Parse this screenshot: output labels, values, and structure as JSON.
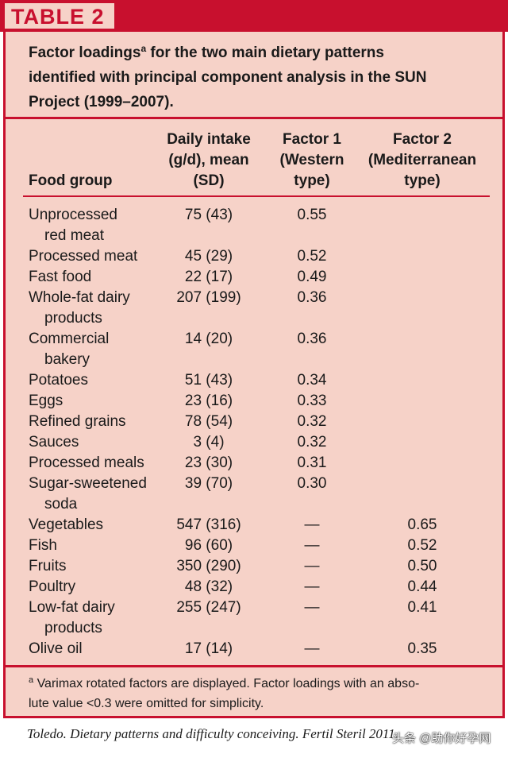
{
  "table": {
    "label": "TABLE 2",
    "caption_line1_a": "Factor loadings",
    "caption_sup": "a",
    "caption_line1_b": " for the two main dietary patterns",
    "caption_line2": "identified with principal component analysis in the SUN",
    "caption_line3": "Project (1999–2007).",
    "columns": [
      {
        "lines": [
          "",
          "",
          "Food group"
        ]
      },
      {
        "lines": [
          "Daily intake",
          "(g/d), mean",
          "(SD)"
        ]
      },
      {
        "lines": [
          "Factor 1",
          "(Western",
          "type)"
        ]
      },
      {
        "lines": [
          "Factor 2",
          "(Mediterranean",
          "type)"
        ]
      }
    ],
    "rows": [
      {
        "food": [
          "Unprocessed",
          "red meat"
        ],
        "intake": "75 (43)",
        "f1": "0.55",
        "f2": ""
      },
      {
        "food": [
          "Processed meat"
        ],
        "intake": "45 (29)",
        "f1": "0.52",
        "f2": ""
      },
      {
        "food": [
          "Fast food"
        ],
        "intake": "22 (17)",
        "f1": "0.49",
        "f2": ""
      },
      {
        "food": [
          "Whole-fat dairy",
          "products"
        ],
        "intake": "207 (199)",
        "f1": "0.36",
        "f2": ""
      },
      {
        "food": [
          "Commercial",
          "bakery"
        ],
        "intake": "14 (20)",
        "f1": "0.36",
        "f2": ""
      },
      {
        "food": [
          "Potatoes"
        ],
        "intake": "51 (43)",
        "f1": "0.34",
        "f2": ""
      },
      {
        "food": [
          "Eggs"
        ],
        "intake": "23 (16)",
        "f1": "0.33",
        "f2": ""
      },
      {
        "food": [
          "Refined grains"
        ],
        "intake": "78 (54)",
        "f1": "0.32",
        "f2": ""
      },
      {
        "food": [
          "Sauces"
        ],
        "intake": "3 (4)",
        "f1": "0.32",
        "f2": ""
      },
      {
        "food": [
          "Processed meals"
        ],
        "intake": "23 (30)",
        "f1": "0.31",
        "f2": ""
      },
      {
        "food": [
          "Sugar-sweetened",
          "soda"
        ],
        "intake": "39 (70)",
        "f1": "0.30",
        "f2": ""
      },
      {
        "food": [
          "Vegetables"
        ],
        "intake": "547 (316)",
        "f1": "—",
        "f2": "0.65"
      },
      {
        "food": [
          "Fish"
        ],
        "intake": "96 (60)",
        "f1": "—",
        "f2": "0.52"
      },
      {
        "food": [
          "Fruits"
        ],
        "intake": "350 (290)",
        "f1": "—",
        "f2": "0.50"
      },
      {
        "food": [
          "Poultry"
        ],
        "intake": "48 (32)",
        "f1": "—",
        "f2": "0.44"
      },
      {
        "food": [
          "Low-fat dairy",
          "products"
        ],
        "intake": "255 (247)",
        "f1": "—",
        "f2": "0.41"
      },
      {
        "food": [
          "Olive oil"
        ],
        "intake": "17 (14)",
        "f1": "—",
        "f2": "0.35"
      }
    ],
    "footnote_sup": "a",
    "footnote_line1": " Varimax rotated factors are displayed. Factor loadings with an abso-",
    "footnote_line2": "lute value <0.3 were omitted for simplicity."
  },
  "source": "Toledo. Dietary patterns and difficulty conceiving. Fertil Steril 2011.",
  "watermark": "头条 @助你好孕网",
  "colors": {
    "accent": "#c8102e",
    "panel": "#f6d2c8",
    "text": "#1a1a1a"
  }
}
